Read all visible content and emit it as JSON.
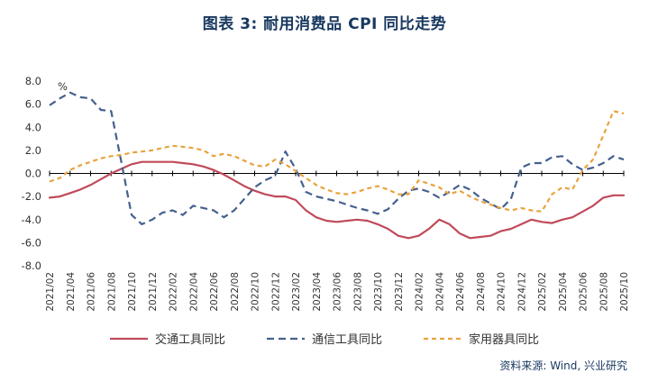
{
  "page": {
    "title": "图表 3: 耐用消费品 CPI 同比走势",
    "source": "资料来源: Wind, 兴业研究"
  },
  "colors": {
    "title_navy": "#17375E",
    "axis_text": "#333333",
    "zero_axis": "#000000",
    "transport_red": "#C04A5A",
    "communication_blue": "#44608E",
    "appliance_orange": "#E8A33C"
  },
  "chart_data": {
    "type": "line",
    "title": "图表 3: 耐用消费品 CPI 同比走势",
    "unit_label": "%",
    "ylim": [
      -8,
      8
    ],
    "y_ticks": [
      8,
      6,
      4,
      2,
      0,
      -2,
      -4,
      -6,
      -8
    ],
    "grid": false,
    "legend_position": "bottom",
    "x_label_every": 2,
    "x": [
      "2021/02",
      "2021/03",
      "2021/04",
      "2021/05",
      "2021/06",
      "2021/07",
      "2021/08",
      "2021/09",
      "2021/10",
      "2021/11",
      "2021/12",
      "2022/01",
      "2022/02",
      "2022/03",
      "2022/04",
      "2022/05",
      "2022/06",
      "2022/07",
      "2022/08",
      "2022/09",
      "2022/10",
      "2022/11",
      "2022/12",
      "2023/01",
      "2023/02",
      "2023/03",
      "2023/04",
      "2023/05",
      "2023/06",
      "2023/07",
      "2023/08",
      "2023/09",
      "2023/10",
      "2023/11",
      "2023/12",
      "2024/01",
      "2024/02",
      "2024/03",
      "2024/04",
      "2024/05",
      "2024/06",
      "2024/07",
      "2024/08",
      "2024/09",
      "2024/10",
      "2024/11",
      "2024/12",
      "2025/01",
      "2025/02",
      "2025/03",
      "2025/04",
      "2025/05",
      "2025/06",
      "2025/07",
      "2025/08",
      "2025/09",
      "2025/10"
    ],
    "series": [
      {
        "name": "交通工具同比",
        "color": "#C04A5A",
        "dash": null,
        "values": [
          -2.1,
          -2.0,
          -1.7,
          -1.4,
          -1.0,
          -0.5,
          0.0,
          0.4,
          0.8,
          1.0,
          1.0,
          1.0,
          1.0,
          0.9,
          0.8,
          0.6,
          0.3,
          -0.1,
          -0.6,
          -1.1,
          -1.5,
          -1.8,
          -2.0,
          -2.0,
          -2.3,
          -3.2,
          -3.8,
          -4.1,
          -4.2,
          -4.1,
          -4.0,
          -4.1,
          -4.4,
          -4.8,
          -5.4,
          -5.6,
          -5.4,
          -4.8,
          -4.0,
          -4.4,
          -5.2,
          -5.6,
          -5.5,
          -5.4,
          -5.0,
          -4.8,
          -4.4,
          -4.0,
          -4.2,
          -4.3,
          -4.0,
          -3.8,
          -3.3,
          -2.8,
          -2.1,
          -1.9,
          -1.9
        ]
      },
      {
        "name": "通信工具同比",
        "color": "#44608E",
        "dash": "8 5",
        "values": [
          5.9,
          6.5,
          7.0,
          6.6,
          6.5,
          5.5,
          5.4,
          1.0,
          -3.6,
          -4.4,
          -4.0,
          -3.4,
          -3.2,
          -3.6,
          -2.8,
          -3.0,
          -3.2,
          -3.8,
          -3.2,
          -2.2,
          -1.2,
          -0.6,
          -0.2,
          1.9,
          0.4,
          -1.6,
          -2.0,
          -2.2,
          -2.4,
          -2.7,
          -3.0,
          -3.2,
          -3.5,
          -3.1,
          -2.2,
          -1.5,
          -1.3,
          -1.6,
          -2.1,
          -1.6,
          -1.0,
          -1.4,
          -2.1,
          -2.6,
          -3.1,
          -2.2,
          0.5,
          0.9,
          0.9,
          1.4,
          1.5,
          0.8,
          0.3,
          0.5,
          0.9,
          1.5,
          1.2
        ]
      },
      {
        "name": "家用器具同比",
        "color": "#E8A33C",
        "dash": "5 4",
        "values": [
          -0.7,
          -0.4,
          0.3,
          0.7,
          1.0,
          1.3,
          1.5,
          1.6,
          1.8,
          1.9,
          2.0,
          2.2,
          2.4,
          2.3,
          2.2,
          2.0,
          1.5,
          1.7,
          1.5,
          1.1,
          0.7,
          0.6,
          1.2,
          0.8,
          0.2,
          -0.4,
          -1.0,
          -1.4,
          -1.7,
          -1.8,
          -1.6,
          -1.3,
          -1.1,
          -1.4,
          -1.8,
          -1.8,
          -0.6,
          -0.9,
          -1.2,
          -1.8,
          -1.5,
          -2.0,
          -2.4,
          -2.7,
          -3.0,
          -3.2,
          -3.0,
          -3.2,
          -3.3,
          -1.8,
          -1.2,
          -1.4,
          0.3,
          1.2,
          3.3,
          5.4,
          5.2
        ]
      }
    ]
  }
}
